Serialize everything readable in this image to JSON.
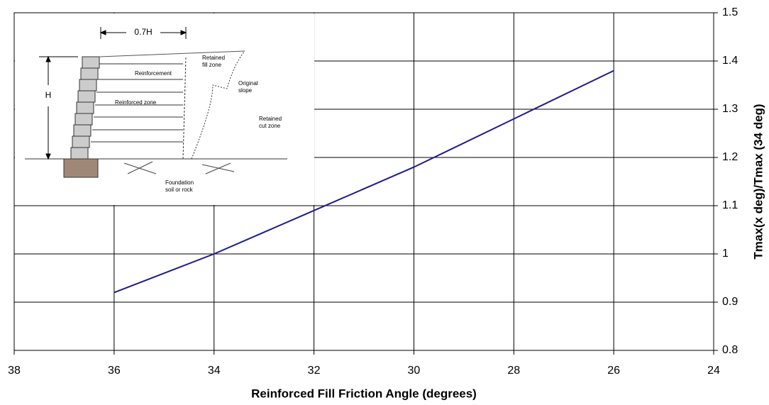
{
  "chart_data": {
    "type": "line",
    "x_label": "Reinforced Fill Friction Angle (degrees)",
    "y_label": "Tmax(x deg)/Tmax (34 deg)",
    "x": [
      36,
      34,
      32,
      30,
      28,
      26
    ],
    "values": [
      0.92,
      1.0,
      1.09,
      1.18,
      1.28,
      1.38
    ],
    "color": "#1c1c8a",
    "xlim": [
      38,
      24
    ],
    "xticks": [
      38,
      36,
      34,
      32,
      30,
      28,
      26,
      24
    ],
    "ylim": [
      0.8,
      1.5
    ],
    "yticks": [
      0.8,
      0.9,
      1,
      1.1,
      1.2,
      1.3,
      1.4,
      1.5
    ],
    "grid": true,
    "annotations": [
      "0.7H",
      "H",
      "Reinforcement",
      "Retained",
      "fill zone",
      "Original",
      "slope",
      "Reinforced zone",
      "Retained",
      "cut zone",
      "Foundation",
      "soil or rock"
    ]
  }
}
